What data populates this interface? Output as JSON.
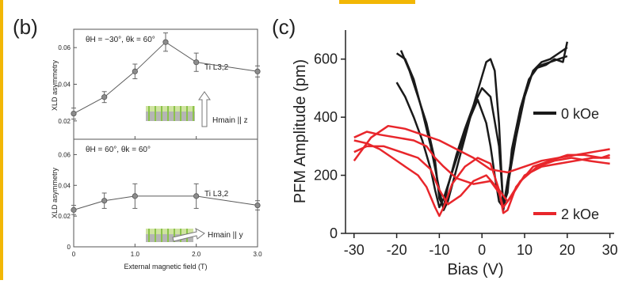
{
  "colors": {
    "frame_accent": "#f2b705",
    "black_curve": "#1a1a1a",
    "red_curve": "#e8262b",
    "panel_b_line": "#5a5a5a",
    "panel_b_marker": "#8c8c8c"
  },
  "panel_b": {
    "label": "(b)"
  },
  "panel_c": {
    "label": "(c)"
  },
  "chart_data": [
    {
      "type": "line",
      "panel": "b-top",
      "annotation": "θH = −30°, θk = 60°",
      "series_label": "Ti L3,2",
      "field_label": "Hmain || z",
      "ylabel": "XLD asymmetry",
      "xlabel": "",
      "xlim": [
        0,
        3.0
      ],
      "ylim": [
        0.01,
        0.07
      ],
      "yticks": [
        "0.02",
        "0.04",
        "0.06"
      ],
      "x": [
        0.0,
        0.5,
        1.0,
        1.5,
        2.0,
        3.0
      ],
      "y": [
        0.024,
        0.033,
        0.047,
        0.063,
        0.052,
        0.047
      ],
      "err": [
        0.003,
        0.003,
        0.004,
        0.005,
        0.005,
        0.003
      ]
    },
    {
      "type": "line",
      "panel": "b-bottom",
      "annotation": "θH = 60°, θk = 60°",
      "series_label": "Ti L3,2",
      "field_label": "Hmain || y",
      "ylabel": "XLD asymmetry",
      "xlabel": "External magnetic field (T)",
      "xlim": [
        0,
        3.0
      ],
      "ylim": [
        0,
        0.07
      ],
      "yticks": [
        "0",
        "0.02",
        "0.04",
        "0.06"
      ],
      "xticks": [
        "0",
        "1.0",
        "2.0",
        "3.0"
      ],
      "x": [
        0.0,
        0.5,
        1.0,
        2.0,
        3.0
      ],
      "y": [
        0.024,
        0.03,
        0.033,
        0.033,
        0.027
      ],
      "err": [
        0.003,
        0.005,
        0.008,
        0.008,
        0.003
      ]
    },
    {
      "type": "line",
      "panel": "c",
      "xlabel": "Bias (V)",
      "ylabel": "PFM Amplitude (pm)",
      "xlim": [
        -32,
        31
      ],
      "ylim": [
        0,
        700
      ],
      "xticks": [
        "-30",
        "-20",
        "-10",
        "0",
        "10",
        "20",
        "30"
      ],
      "yticks": [
        "0",
        "200",
        "400",
        "600"
      ],
      "legend": [
        "0 kOe",
        "2 kOe"
      ],
      "series": [
        {
          "name": "0 kOe",
          "color": "#1a1a1a",
          "x": [
            -20,
            -18,
            -16,
            -14,
            -12,
            -11,
            -10,
            -9,
            -7,
            -5,
            -3,
            -1,
            1,
            2,
            3,
            4,
            5,
            6,
            8,
            10,
            12,
            14,
            16,
            18,
            20
          ],
          "y": [
            520,
            470,
            400,
            320,
            220,
            150,
            90,
            120,
            210,
            300,
            390,
            460,
            380,
            300,
            200,
            110,
            90,
            180,
            350,
            480,
            560,
            580,
            590,
            600,
            610
          ]
        },
        {
          "name": "0 kOe",
          "color": "#1a1a1a",
          "x": [
            -20,
            -18,
            -16,
            -14,
            -12,
            -10,
            -9,
            -8,
            -6,
            -4,
            -2,
            0,
            1,
            2,
            3,
            4,
            5,
            6,
            8,
            10,
            12,
            14,
            16,
            18,
            20
          ],
          "y": [
            620,
            600,
            530,
            420,
            300,
            150,
            80,
            110,
            220,
            330,
            440,
            540,
            590,
            600,
            560,
            380,
            80,
            160,
            330,
            470,
            560,
            590,
            600,
            620,
            640
          ]
        },
        {
          "name": "0 kOe",
          "color": "#1a1a1a",
          "x": [
            -19,
            -17,
            -15,
            -13,
            -11,
            -10,
            -9,
            -8,
            -6,
            -4,
            -2,
            0,
            2,
            4,
            5,
            6,
            7,
            9,
            11,
            13,
            15,
            17,
            19,
            20
          ],
          "y": [
            630,
            560,
            470,
            380,
            250,
            120,
            90,
            160,
            270,
            360,
            440,
            500,
            470,
            300,
            100,
            140,
            290,
            430,
            530,
            570,
            580,
            600,
            590,
            660
          ]
        },
        {
          "name": "2 kOe",
          "color": "#e8262b",
          "x": [
            -30,
            -27,
            -24,
            -21,
            -18,
            -15,
            -13,
            -11,
            -10,
            -9,
            -7,
            -4,
            -1,
            2,
            4,
            5,
            6,
            8,
            12,
            16,
            20,
            24,
            28,
            30
          ],
          "y": [
            320,
            310,
            290,
            260,
            230,
            200,
            160,
            90,
            60,
            90,
            170,
            230,
            260,
            240,
            150,
            70,
            80,
            160,
            230,
            250,
            270,
            270,
            260,
            270
          ]
        },
        {
          "name": "2 kOe",
          "color": "#e8262b",
          "x": [
            -30,
            -27,
            -24,
            -20,
            -16,
            -13,
            -11,
            -9,
            -6,
            -2,
            2,
            4,
            5,
            7,
            10,
            14,
            18,
            22,
            26,
            30
          ],
          "y": [
            330,
            350,
            340,
            330,
            320,
            300,
            260,
            230,
            190,
            170,
            180,
            140,
            90,
            130,
            200,
            230,
            240,
            250,
            260,
            260
          ]
        },
        {
          "name": "2 kOe",
          "color": "#e8262b",
          "x": [
            -30,
            -27,
            -23,
            -19,
            -15,
            -12,
            -10,
            -8,
            -5,
            -2,
            1,
            4,
            6,
            9,
            13,
            17,
            21,
            25,
            30
          ],
          "y": [
            280,
            300,
            300,
            280,
            260,
            220,
            150,
            100,
            130,
            180,
            200,
            150,
            110,
            180,
            230,
            250,
            260,
            250,
            240
          ]
        },
        {
          "name": "2 kOe",
          "color": "#e8262b",
          "x": [
            -30,
            -26,
            -22,
            -18,
            -14,
            -10,
            -6,
            -2,
            2,
            6,
            10,
            14,
            18,
            22,
            26,
            30
          ],
          "y": [
            250,
            330,
            370,
            360,
            340,
            320,
            290,
            260,
            220,
            210,
            230,
            250,
            260,
            270,
            280,
            290
          ]
        }
      ]
    }
  ]
}
